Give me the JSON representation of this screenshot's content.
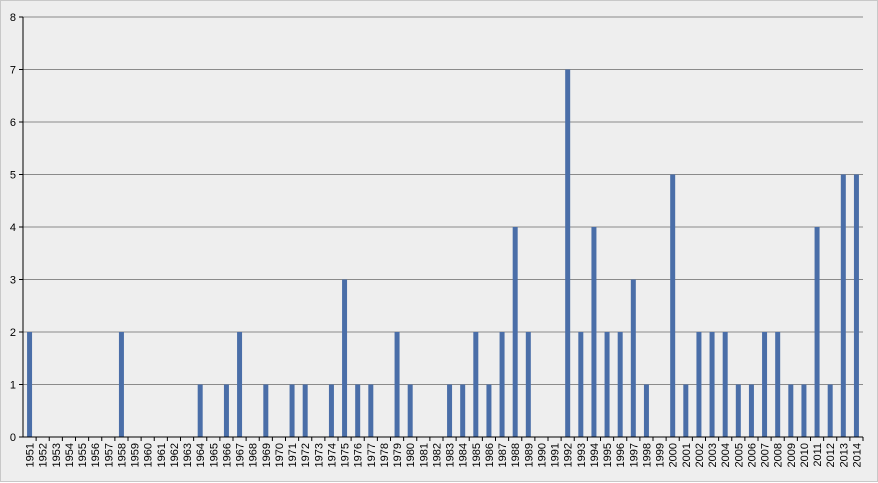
{
  "chart_data": {
    "type": "bar",
    "title": "",
    "xlabel": "",
    "ylabel": "",
    "ylim": [
      0,
      8
    ],
    "yticks": [
      0,
      1,
      2,
      3,
      4,
      5,
      6,
      7,
      8
    ],
    "grid": true,
    "legend": "none",
    "bar_color": "#4a6ea8",
    "categories": [
      "1951",
      "1952",
      "1953",
      "1954",
      "1955",
      "1956",
      "1957",
      "1958",
      "1959",
      "1960",
      "1961",
      "1962",
      "1963",
      "1964",
      "1965",
      "1966",
      "1967",
      "1968",
      "1969",
      "1970",
      "1971",
      "1972",
      "1973",
      "1974",
      "1975",
      "1976",
      "1977",
      "1978",
      "1979",
      "1980",
      "1981",
      "1982",
      "1983",
      "1984",
      "1985",
      "1986",
      "1987",
      "1988",
      "1989",
      "1990",
      "1991",
      "1992",
      "1993",
      "1994",
      "1995",
      "1996",
      "1997",
      "1998",
      "1999",
      "2000",
      "2001",
      "2002",
      "2003",
      "2004",
      "2005",
      "2006",
      "2007",
      "2008",
      "2009",
      "2010",
      "2011",
      "2012",
      "2013",
      "2014"
    ],
    "values": [
      2,
      0,
      0,
      0,
      0,
      0,
      0,
      2,
      0,
      0,
      0,
      0,
      0,
      1,
      0,
      1,
      2,
      0,
      1,
      0,
      1,
      1,
      0,
      1,
      3,
      1,
      1,
      0,
      2,
      1,
      0,
      0,
      1,
      1,
      2,
      1,
      2,
      4,
      2,
      0,
      0,
      7,
      2,
      4,
      2,
      2,
      3,
      1,
      0,
      5,
      1,
      2,
      2,
      2,
      1,
      1,
      2,
      2,
      1,
      1,
      4,
      1,
      5,
      5
    ]
  }
}
